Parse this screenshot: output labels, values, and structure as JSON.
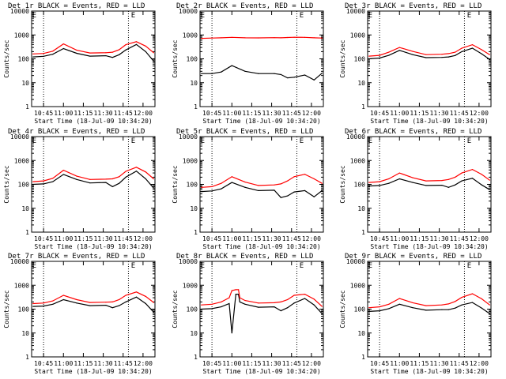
{
  "colors": {
    "events": "#000000",
    "lld": "#ff0000",
    "background": "#ffffff",
    "axis": "#000000"
  },
  "shared": {
    "ylabel": "Counts/sec",
    "xlabel": "Start Time (18-Jul-09 10:34:20)",
    "xticks": [
      "10:45",
      "11:00",
      "11:15",
      "11:30",
      "11:45",
      "12:00"
    ],
    "yticks": [
      "1",
      "10",
      "100",
      "1000",
      "10000"
    ],
    "marker": "E"
  },
  "chart_data": [
    {
      "type": "line",
      "title": "Det 1r BLACK = Events, RED = LLD",
      "ylim": [
        1,
        10000
      ],
      "xlim": [
        "10:36",
        "12:09"
      ],
      "xlabel": "Start Time (18-Jul-09 10:34:20)",
      "ylabel": "Counts/sec",
      "x": [
        "10:37",
        "10:45",
        "10:52",
        "11:00",
        "11:10",
        "11:20",
        "11:32",
        "11:37",
        "11:42",
        "11:47",
        "11:55",
        "12:02",
        "12:08"
      ],
      "series": [
        {
          "name": "Events",
          "values": [
            120,
            128,
            155,
            270,
            170,
            130,
            135,
            115,
            148,
            235,
            400,
            200,
            80
          ]
        },
        {
          "name": "LLD",
          "values": [
            160,
            168,
            210,
            420,
            230,
            175,
            180,
            190,
            240,
            390,
            520,
            340,
            180
          ]
        }
      ]
    },
    {
      "type": "line",
      "title": "Det 2r BLACK = Events, RED = LLD",
      "ylim": [
        1,
        10000
      ],
      "xlim": [
        "10:36",
        "12:09"
      ],
      "xlabel": "Start Time (18-Jul-09 10:34:20)",
      "ylabel": "Counts/sec",
      "x": [
        "10:37",
        "10:45",
        "10:52",
        "11:00",
        "11:10",
        "11:20",
        "11:32",
        "11:37",
        "11:42",
        "11:47",
        "11:55",
        "12:02",
        "12:08"
      ],
      "series": [
        {
          "name": "Events",
          "values": [
            24,
            24,
            28,
            52,
            30,
            24,
            24,
            22,
            16,
            17,
            21,
            13,
            25
          ]
        },
        {
          "name": "LLD",
          "values": [
            720,
            740,
            760,
            790,
            760,
            750,
            770,
            760,
            780,
            800,
            790,
            760,
            740
          ]
        }
      ]
    },
    {
      "type": "line",
      "title": "Det 3r BLACK = Events, RED = LLD",
      "ylim": [
        1,
        10000
      ],
      "xlim": [
        "10:36",
        "12:09"
      ],
      "xlabel": "Start Time (18-Jul-09 10:34:20)",
      "ylabel": "Counts/sec",
      "x": [
        "10:37",
        "10:45",
        "10:52",
        "11:00",
        "11:10",
        "11:20",
        "11:32",
        "11:37",
        "11:42",
        "11:47",
        "11:55",
        "12:02",
        "12:08"
      ],
      "series": [
        {
          "name": "Events",
          "values": [
            100,
            108,
            140,
            225,
            150,
            112,
            115,
            120,
            138,
            200,
            280,
            160,
            95
          ]
        },
        {
          "name": "LLD",
          "values": [
            130,
            140,
            190,
            300,
            205,
            150,
            155,
            165,
            190,
            280,
            390,
            240,
            150
          ]
        }
      ]
    },
    {
      "type": "line",
      "title": "Det 4r BLACK = Events, RED = LLD",
      "ylim": [
        1,
        10000
      ],
      "xlim": [
        "10:36",
        "12:09"
      ],
      "xlabel": "Start Time (18-Jul-09 10:34:20)",
      "ylabel": "Counts/sec",
      "x": [
        "10:37",
        "10:45",
        "10:52",
        "11:00",
        "11:10",
        "11:20",
        "11:32",
        "11:37",
        "11:42",
        "11:47",
        "11:55",
        "12:02",
        "12:08"
      ],
      "series": [
        {
          "name": "Events",
          "values": [
            100,
            105,
            130,
            260,
            160,
            115,
            120,
            80,
            110,
            200,
            360,
            170,
            70
          ]
        },
        {
          "name": "LLD",
          "values": [
            130,
            140,
            180,
            390,
            220,
            160,
            165,
            170,
            210,
            350,
            520,
            330,
            170
          ]
        }
      ]
    },
    {
      "type": "line",
      "title": "Det 5r BLACK = Events, RED = LLD",
      "ylim": [
        1,
        10000
      ],
      "xlim": [
        "10:36",
        "12:09"
      ],
      "xlabel": "Start Time (18-Jul-09 10:34:20)",
      "ylabel": "Counts/sec",
      "x": [
        "10:37",
        "10:45",
        "10:52",
        "11:00",
        "11:10",
        "11:20",
        "11:32",
        "11:37",
        "11:42",
        "11:47",
        "11:55",
        "12:02",
        "12:08"
      ],
      "series": [
        {
          "name": "Events",
          "values": [
            50,
            53,
            65,
            120,
            75,
            55,
            57,
            28,
            33,
            48,
            55,
            30,
            55
          ]
        },
        {
          "name": "LLD",
          "values": [
            75,
            80,
            110,
            210,
            125,
            90,
            95,
            105,
            140,
            210,
            265,
            170,
            110
          ]
        }
      ]
    },
    {
      "type": "line",
      "title": "Det 6r BLACK = Events, RED = LLD",
      "ylim": [
        1,
        10000
      ],
      "xlim": [
        "10:36",
        "12:09"
      ],
      "xlabel": "Start Time (18-Jul-09 10:34:20)",
      "ylabel": "Counts/sec",
      "x": [
        "10:37",
        "10:45",
        "10:52",
        "11:00",
        "11:10",
        "11:20",
        "11:32",
        "11:37",
        "11:42",
        "11:47",
        "11:55",
        "12:02",
        "12:08"
      ],
      "series": [
        {
          "name": "Events",
          "values": [
            85,
            90,
            110,
            170,
            120,
            90,
            92,
            75,
            95,
            140,
            180,
            95,
            60
          ]
        },
        {
          "name": "LLD",
          "values": [
            120,
            130,
            170,
            300,
            190,
            140,
            145,
            160,
            200,
            300,
            420,
            260,
            150
          ]
        }
      ]
    },
    {
      "type": "line",
      "title": "Det 7r BLACK = Events, RED = LLD",
      "ylim": [
        1,
        10000
      ],
      "xlim": [
        "10:36",
        "12:09"
      ],
      "xlabel": "Start Time (18-Jul-09 10:34:20)",
      "ylabel": "Counts/sec",
      "x": [
        "10:37",
        "10:45",
        "10:52",
        "11:00",
        "11:10",
        "11:20",
        "11:32",
        "11:37",
        "11:42",
        "11:47",
        "11:55",
        "12:02",
        "12:08"
      ],
      "series": [
        {
          "name": "Events",
          "values": [
            130,
            135,
            160,
            250,
            180,
            140,
            145,
            115,
            140,
            200,
            320,
            170,
            75
          ]
        },
        {
          "name": "LLD",
          "values": [
            170,
            180,
            220,
            380,
            250,
            190,
            195,
            200,
            250,
            380,
            520,
            340,
            190
          ]
        }
      ]
    },
    {
      "type": "line",
      "title": "Det 8r BLACK = Events, RED = LLD",
      "ylim": [
        1,
        10000
      ],
      "xlim": [
        "10:36",
        "12:09"
      ],
      "xlabel": "Start Time (18-Jul-09 10:34:20)",
      "ylabel": "Counts/sec",
      "x": [
        "10:37",
        "10:45",
        "10:52",
        "10:58",
        "11:00",
        "11:03",
        "11:05",
        "11:06",
        "11:10",
        "11:20",
        "11:32",
        "11:37",
        "11:42",
        "11:47",
        "11:55",
        "12:02",
        "12:08"
      ],
      "series": [
        {
          "name": "Events",
          "values": [
            100,
            105,
            125,
            170,
            10,
            420,
            420,
            200,
            160,
            120,
            125,
            85,
            115,
            180,
            280,
            150,
            65
          ]
        },
        {
          "name": "LLD",
          "values": [
            150,
            160,
            200,
            300,
            600,
            650,
            650,
            300,
            230,
            180,
            185,
            200,
            250,
            380,
            420,
            260,
            130
          ]
        }
      ]
    },
    {
      "type": "line",
      "title": "Det 9r BLACK = Events, RED = LLD",
      "ylim": [
        1,
        10000
      ],
      "xlim": [
        "10:36",
        "12:09"
      ],
      "xlabel": "Start Time (18-Jul-09 10:34:20)",
      "ylabel": "Counts/sec",
      "x": [
        "10:37",
        "10:45",
        "10:52",
        "11:00",
        "11:10",
        "11:20",
        "11:32",
        "11:37",
        "11:42",
        "11:47",
        "11:55",
        "12:02",
        "12:08"
      ],
      "series": [
        {
          "name": "Events",
          "values": [
            80,
            85,
            105,
            160,
            115,
            90,
            95,
            95,
            110,
            150,
            190,
            110,
            65
          ]
        },
        {
          "name": "LLD",
          "values": [
            115,
            125,
            160,
            280,
            185,
            140,
            150,
            165,
            210,
            310,
            440,
            270,
            150
          ]
        }
      ]
    }
  ]
}
